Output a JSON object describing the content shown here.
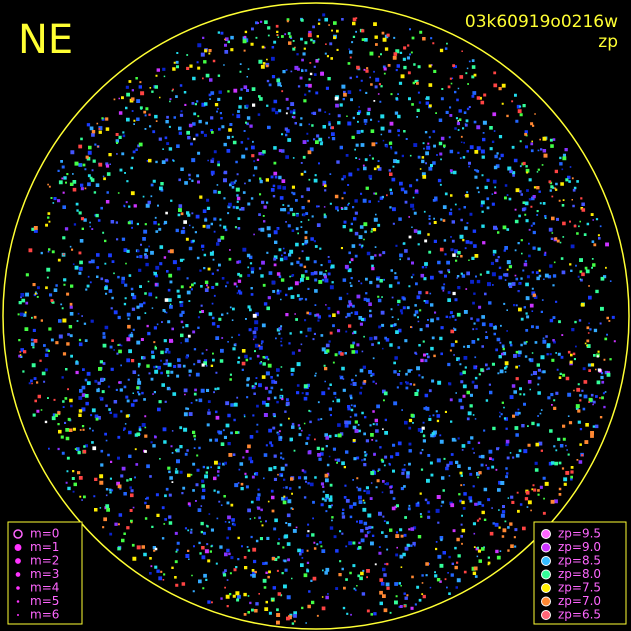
{
  "corner_label": "NE",
  "frame_id": "03k60919o0216w",
  "mode": "zp",
  "magnitude_legend": [
    "m=0",
    "m=1",
    "m=2",
    "m=3",
    "m=4",
    "m=5",
    "m=6"
  ],
  "zp_legend": [
    {
      "label": "zp=9.5",
      "color": "#ff66ff"
    },
    {
      "label": "zp=9.0",
      "color": "#cc33ff"
    },
    {
      "label": "zp=8.5",
      "color": "#33bbff"
    },
    {
      "label": "zp=8.0",
      "color": "#33ff99"
    },
    {
      "label": "zp=7.5",
      "color": "#ffee00"
    },
    {
      "label": "zp=7.0",
      "color": "#ff8833"
    },
    {
      "label": "zp=6.5",
      "color": "#ff6677"
    }
  ]
}
